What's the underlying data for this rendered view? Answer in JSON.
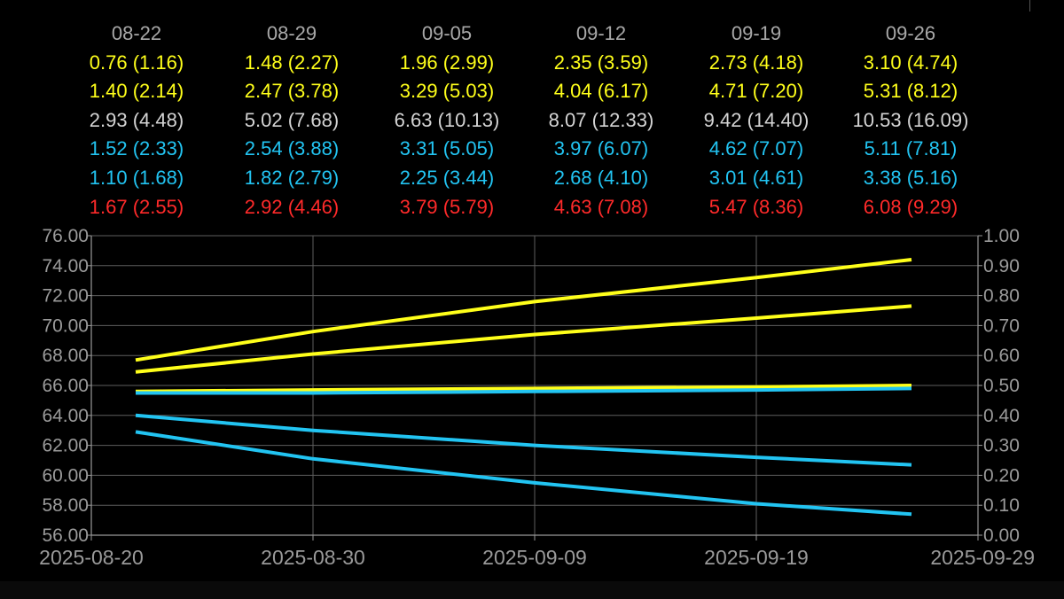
{
  "colors": {
    "background": "#000000",
    "header": "#a8a8a8",
    "yellow": "#ffff1a",
    "gray": "#d4d4d4",
    "blue": "#22c4f2",
    "red": "#ff2a2a",
    "axis": "#9a9a9a"
  },
  "table": {
    "row_colors": [
      "yellow",
      "yellow",
      "gray",
      "blue",
      "blue",
      "red"
    ],
    "columns": [
      {
        "date": "08-22",
        "rows": [
          "0.76 (1.16)",
          "1.40 (2.14)",
          "2.93 (4.48)",
          "1.52 (2.33)",
          "1.10 (1.68)",
          "1.67 (2.55)"
        ]
      },
      {
        "date": "08-29",
        "rows": [
          "1.48 (2.27)",
          "2.47 (3.78)",
          "5.02 (7.68)",
          "2.54 (3.88)",
          "1.82 (2.79)",
          "2.92 (4.46)"
        ]
      },
      {
        "date": "09-05",
        "rows": [
          "1.96 (2.99)",
          "3.29 (5.03)",
          "6.63 (10.13)",
          "3.31 (5.05)",
          "2.25 (3.44)",
          "3.79 (5.79)"
        ]
      },
      {
        "date": "09-12",
        "rows": [
          "2.35 (3.59)",
          "4.04 (6.17)",
          "8.07 (12.33)",
          "3.97 (6.07)",
          "2.68 (4.10)",
          "4.63 (7.08)"
        ]
      },
      {
        "date": "09-19",
        "rows": [
          "2.73 (4.18)",
          "4.71 (7.20)",
          "9.42 (14.40)",
          "4.62 (7.07)",
          "3.01 (4.61)",
          "5.47 (8.36)"
        ]
      },
      {
        "date": "09-26",
        "rows": [
          "3.10 (4.74)",
          "5.31 (8.12)",
          "10.53 (16.09)",
          "5.11 (7.81)",
          "3.38 (5.16)",
          "6.08 (9.29)"
        ]
      }
    ]
  },
  "chart_data": {
    "type": "line",
    "x_axis": {
      "type": "date",
      "range": [
        "2025-08-20",
        "2025-09-29"
      ],
      "tick_labels": [
        "2025-08-20",
        "2025-08-30",
        "2025-09-09",
        "2025-09-19",
        "2025-09-29"
      ]
    },
    "y_left": {
      "range": [
        56,
        76
      ],
      "tick_labels": [
        "56.00",
        "58.00",
        "60.00",
        "62.00",
        "64.00",
        "66.00",
        "68.00",
        "70.00",
        "72.00",
        "74.00",
        "76.00"
      ]
    },
    "y_right": {
      "range": [
        0,
        1
      ],
      "tick_labels": [
        "0.00",
        "0.10",
        "0.20",
        "0.30",
        "0.40",
        "0.50",
        "0.60",
        "0.70",
        "0.80",
        "0.90",
        "1.00"
      ]
    },
    "grid": true,
    "series": [
      {
        "color": "yellow",
        "axis": "left",
        "points": [
          [
            "2025-08-22",
            67.7
          ],
          [
            "2025-08-30",
            69.6
          ],
          [
            "2025-09-09",
            71.6
          ],
          [
            "2025-09-19",
            73.2
          ],
          [
            "2025-09-26",
            74.4
          ]
        ]
      },
      {
        "color": "yellow",
        "axis": "left",
        "points": [
          [
            "2025-08-22",
            66.9
          ],
          [
            "2025-08-30",
            68.1
          ],
          [
            "2025-09-09",
            69.4
          ],
          [
            "2025-09-19",
            70.5
          ],
          [
            "2025-09-26",
            71.3
          ]
        ]
      },
      {
        "color": "yellow",
        "axis": "left",
        "points": [
          [
            "2025-08-22",
            65.6
          ],
          [
            "2025-08-30",
            65.7
          ],
          [
            "2025-09-09",
            65.8
          ],
          [
            "2025-09-19",
            65.9
          ],
          [
            "2025-09-26",
            66.0
          ]
        ]
      },
      {
        "color": "blue",
        "axis": "left",
        "points": [
          [
            "2025-08-22",
            65.5
          ],
          [
            "2025-08-30",
            65.5
          ],
          [
            "2025-09-09",
            65.6
          ],
          [
            "2025-09-19",
            65.7
          ],
          [
            "2025-09-26",
            65.8
          ]
        ]
      },
      {
        "color": "blue",
        "axis": "left",
        "points": [
          [
            "2025-08-22",
            64.0
          ],
          [
            "2025-08-30",
            63.0
          ],
          [
            "2025-09-09",
            62.0
          ],
          [
            "2025-09-19",
            61.2
          ],
          [
            "2025-09-26",
            60.7
          ]
        ]
      },
      {
        "color": "blue",
        "axis": "left",
        "points": [
          [
            "2025-08-22",
            62.9
          ],
          [
            "2025-08-30",
            61.1
          ],
          [
            "2025-09-09",
            59.5
          ],
          [
            "2025-09-19",
            58.1
          ],
          [
            "2025-09-26",
            57.4
          ]
        ]
      }
    ]
  }
}
